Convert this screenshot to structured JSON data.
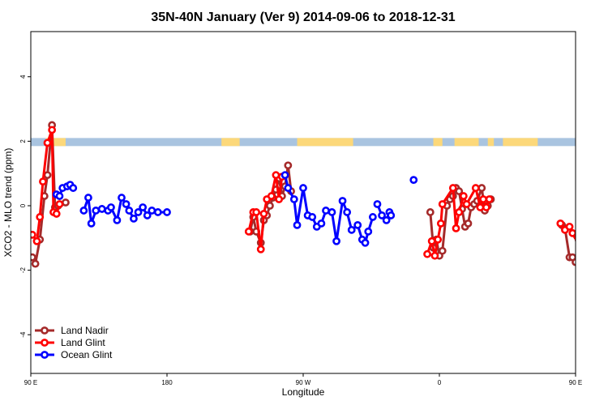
{
  "chart_data": {
    "type": "line",
    "title": "35N-40N January (Ver 9)   2014-09-06 to 2018-12-31",
    "xlabel": "Longitude",
    "ylabel": "XCO2 - MLO trend (ppm)",
    "xlim": [
      90,
      450
    ],
    "ylim": [
      -5.2,
      5.4
    ],
    "x_ticks": [
      {
        "value": 90,
        "label": "90 E"
      },
      {
        "value": 180,
        "label": "180"
      },
      {
        "value": 270,
        "label": "90 W"
      },
      {
        "value": 360,
        "label": "0"
      },
      {
        "value": 450,
        "label": "90 E"
      },
      {
        "value": 540,
        "label": "180"
      }
    ],
    "y_ticks": [
      {
        "value": -4,
        "label": "-4"
      },
      {
        "value": -2,
        "label": "-2"
      },
      {
        "value": 0,
        "label": "0"
      },
      {
        "value": 2,
        "label": "2"
      },
      {
        "value": 4,
        "label": "4"
      }
    ],
    "legend_position": "bottom-left",
    "land_ocean_band": {
      "y_range": [
        1.85,
        2.1
      ],
      "land_color": "#fcd87a",
      "ocean_color": "#a9c4e0",
      "land_segments": [
        [
          100,
          113
        ],
        [
          216,
          228
        ],
        [
          266,
          303
        ],
        [
          356,
          362
        ],
        [
          370,
          386
        ],
        [
          392,
          396
        ],
        [
          402,
          425
        ],
        [
          452,
          459
        ],
        [
          464,
          478
        ],
        [
          486,
          491
        ],
        [
          492,
          501
        ],
        [
          506,
          514
        ],
        [
          522,
          523
        ]
      ]
    },
    "series": [
      {
        "name": "Land Nadir",
        "color": "#a52a2a",
        "segments": [
          [
            [
              91,
              -1.6
            ],
            [
              93,
              -1.8
            ],
            [
              96,
              -1.05
            ],
            [
              99,
              0.3
            ],
            [
              101,
              0.95
            ],
            [
              104,
              2.5
            ],
            [
              106,
              -0.05
            ],
            [
              108,
              0.0
            ],
            [
              113,
              0.1
            ]
          ],
          [
            [
              235,
              -0.8
            ],
            [
              237,
              -0.35
            ],
            [
              239,
              -0.8
            ],
            [
              242,
              -1.15
            ],
            [
              244,
              -0.45
            ],
            [
              246,
              -0.3
            ],
            [
              248,
              0.0
            ],
            [
              250,
              0.25
            ],
            [
              252,
              0.5
            ],
            [
              254,
              0.85
            ],
            [
              256,
              0.3
            ],
            [
              258,
              0.6
            ],
            [
              260,
              1.25
            ],
            [
              262,
              0.45
            ]
          ],
          [
            [
              354,
              -0.2
            ],
            [
              356,
              -1.3
            ],
            [
              358,
              -1.05
            ],
            [
              360,
              -1.55
            ],
            [
              362,
              -1.4
            ],
            [
              365,
              0.0
            ],
            [
              367,
              0.2
            ],
            [
              369,
              0.3
            ],
            [
              371,
              0.55
            ],
            [
              373,
              0.45
            ],
            [
              375,
              -0.1
            ],
            [
              377,
              -0.65
            ],
            [
              379,
              -0.55
            ],
            [
              381,
              -0.05
            ],
            [
              383,
              0.05
            ],
            [
              385,
              0.15
            ],
            [
              388,
              0.55
            ],
            [
              390,
              -0.15
            ],
            [
              392,
              0.0
            ],
            [
              394,
              0.2
            ]
          ],
          [
            [
              441,
              -0.6
            ],
            [
              443,
              -0.7
            ],
            [
              446,
              -1.6
            ],
            [
              448,
              -1.6
            ],
            [
              450,
              -1.75
            ],
            [
              452,
              -1.05
            ],
            [
              454,
              0.3
            ],
            [
              456,
              1.0
            ],
            [
              459,
              2.5
            ],
            [
              461,
              0.0
            ],
            [
              463,
              -0.05
            ],
            [
              467,
              0.1
            ]
          ]
        ]
      },
      {
        "name": "Land Glint",
        "color": "#ff0000",
        "segments": [
          [
            [
              91,
              -0.9
            ],
            [
              94,
              -1.1
            ],
            [
              96,
              -0.35
            ],
            [
              98,
              0.75
            ],
            [
              101,
              1.95
            ],
            [
              104,
              2.35
            ],
            [
              105,
              -0.2
            ],
            [
              107,
              -0.25
            ],
            [
              109,
              0.05
            ]
          ],
          [
            [
              234,
              -0.8
            ],
            [
              237,
              -0.2
            ],
            [
              239,
              -0.2
            ],
            [
              242,
              -1.35
            ],
            [
              244,
              -0.25
            ],
            [
              246,
              0.2
            ],
            [
              249,
              0.3
            ],
            [
              252,
              0.95
            ],
            [
              254,
              0.2
            ],
            [
              256,
              0.9
            ]
          ],
          [
            [
              352,
              -1.5
            ],
            [
              355,
              -1.1
            ],
            [
              357,
              -1.55
            ],
            [
              359,
              -1.05
            ],
            [
              361,
              -0.55
            ],
            [
              362,
              0.05
            ],
            [
              369,
              0.55
            ],
            [
              371,
              -0.7
            ],
            [
              373,
              -0.2
            ],
            [
              376,
              0.3
            ],
            [
              378,
              0.05
            ],
            [
              384,
              0.55
            ],
            [
              387,
              -0.05
            ],
            [
              389,
              0.2
            ],
            [
              391,
              -0.05
            ],
            [
              393,
              0.2
            ]
          ],
          [
            [
              440,
              -0.55
            ],
            [
              443,
              -0.75
            ],
            [
              446,
              -0.65
            ],
            [
              448,
              -0.85
            ],
            [
              451,
              -0.95
            ],
            [
              453,
              -0.35
            ],
            [
              455,
              0.8
            ],
            [
              457,
              1.95
            ],
            [
              459,
              2.35
            ],
            [
              461,
              -0.15
            ],
            [
              463,
              -0.25
            ],
            [
              466,
              0.6
            ]
          ]
        ]
      },
      {
        "name": "Ocean Glint",
        "color": "#0000ff",
        "segments": [
          [
            [
              107,
              0.35
            ],
            [
              109,
              0.3
            ],
            [
              111,
              0.55
            ],
            [
              114,
              0.6
            ],
            [
              116,
              0.65
            ],
            [
              118,
              0.55
            ]
          ],
          [
            [
              125,
              -0.15
            ],
            [
              128,
              0.25
            ],
            [
              130,
              -0.55
            ],
            [
              133,
              -0.15
            ],
            [
              137,
              -0.1
            ],
            [
              141,
              -0.15
            ],
            [
              143,
              -0.05
            ],
            [
              147,
              -0.45
            ],
            [
              150,
              0.25
            ],
            [
              153,
              0.05
            ],
            [
              155,
              -0.15
            ],
            [
              158,
              -0.4
            ],
            [
              161,
              -0.2
            ],
            [
              164,
              -0.05
            ],
            [
              167,
              -0.3
            ],
            [
              170,
              -0.15
            ],
            [
              174,
              -0.2
            ],
            [
              180,
              -0.2
            ]
          ],
          [
            [
              258,
              0.95
            ],
            [
              260,
              0.55
            ],
            [
              264,
              0.2
            ],
            [
              266,
              -0.6
            ],
            [
              270,
              0.55
            ],
            [
              273,
              -0.3
            ],
            [
              276,
              -0.35
            ],
            [
              279,
              -0.65
            ],
            [
              282,
              -0.55
            ],
            [
              285,
              -0.15
            ],
            [
              289,
              -0.2
            ],
            [
              292,
              -1.1
            ],
            [
              296,
              0.15
            ],
            [
              299,
              -0.2
            ],
            [
              302,
              -0.75
            ],
            [
              306,
              -0.6
            ],
            [
              309,
              -1.05
            ],
            [
              311,
              -1.15
            ],
            [
              313,
              -0.8
            ],
            [
              316,
              -0.35
            ]
          ],
          [
            [
              319,
              0.05
            ],
            [
              322,
              -0.3
            ],
            [
              325,
              -0.45
            ],
            [
              327,
              -0.2
            ],
            [
              328,
              -0.3
            ]
          ],
          [
            [
              343,
              0.8
            ]
          ],
          [
            [
              462,
              0.4
            ],
            [
              465,
              0.3
            ],
            [
              467,
              0.55
            ],
            [
              470,
              0.6
            ],
            [
              472,
              0.65
            ],
            [
              474,
              0.55
            ]
          ],
          [
            [
              481,
              -0.15
            ],
            [
              484,
              0.25
            ],
            [
              486,
              -0.55
            ],
            [
              489,
              -0.15
            ],
            [
              492,
              -0.1
            ]
          ]
        ]
      }
    ]
  }
}
